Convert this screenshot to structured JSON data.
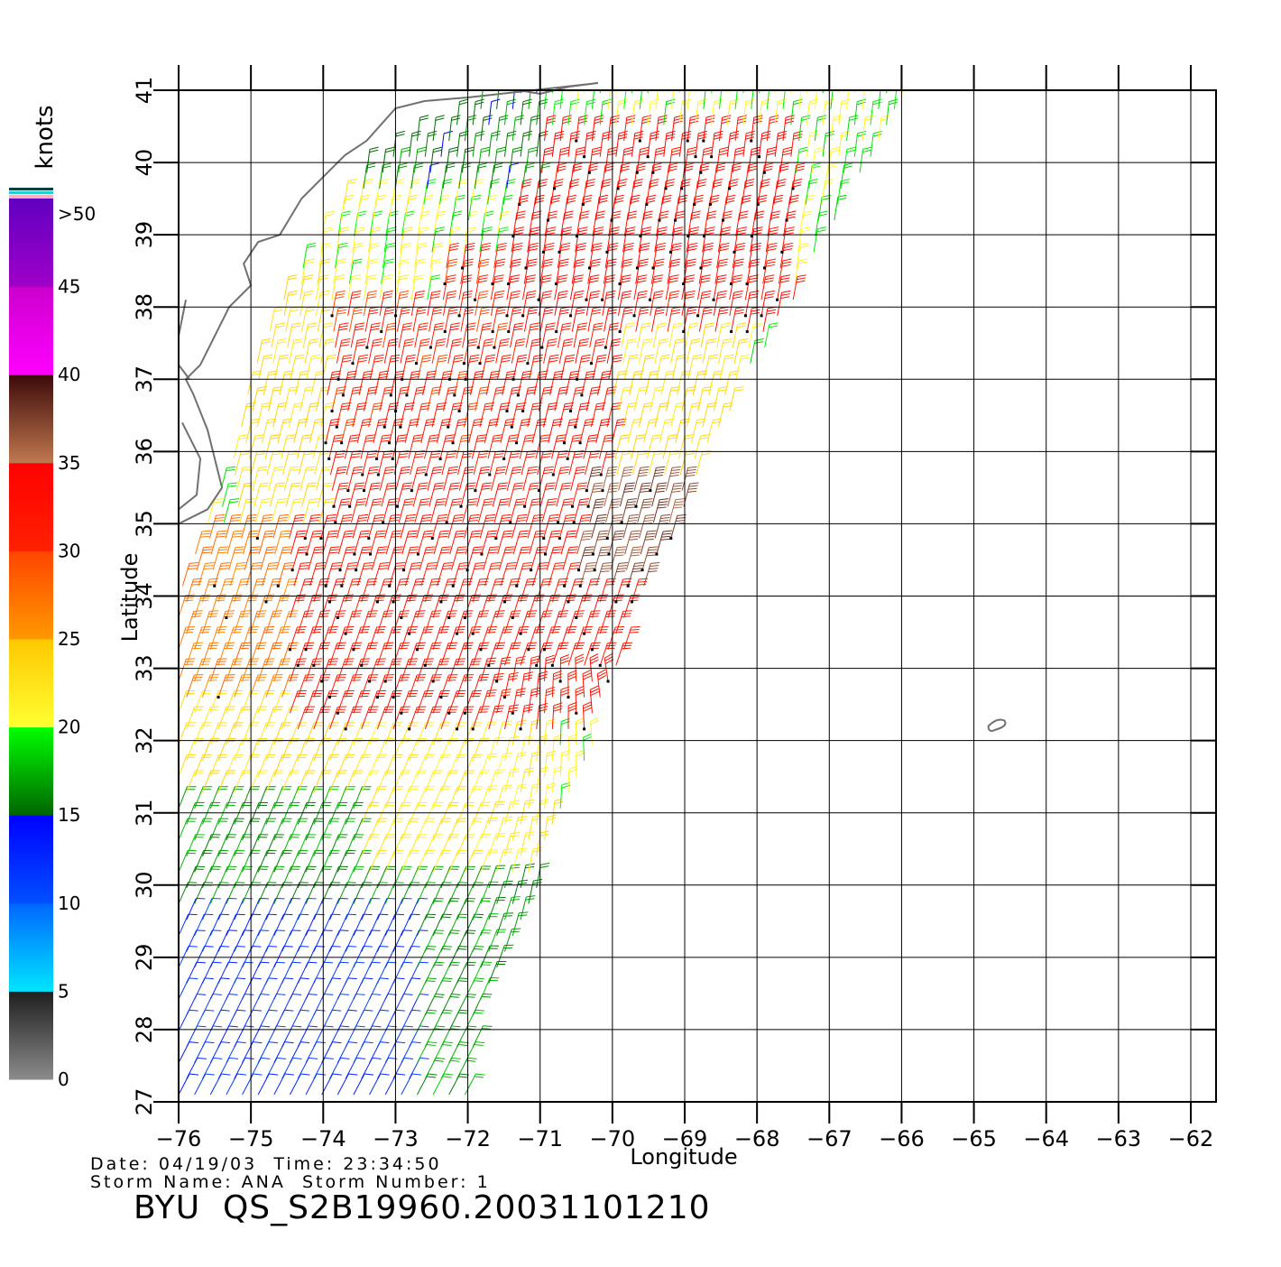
{
  "figure": {
    "date_label": "Date:",
    "date": "04/19/03",
    "time_label": "Time:",
    "time": "23:34:50",
    "storm_name_label": "Storm Name:",
    "storm_name": "ANA",
    "storm_number_label": "Storm Number:",
    "storm_number": "1",
    "file_id": "BYU  QS_S2B19960.20031101210"
  },
  "colorbar": {
    "unit": "knots",
    "bands": [
      {
        "from": 0,
        "to": 5,
        "colors": [
          "#8c8c8c",
          "#1e1e1e"
        ]
      },
      {
        "from": 5,
        "to": 10,
        "colors": [
          "#00e5ff",
          "#0066ff"
        ]
      },
      {
        "from": 10,
        "to": 15,
        "colors": [
          "#0050ff",
          "#0000ff"
        ]
      },
      {
        "from": 15,
        "to": 20,
        "colors": [
          "#006400",
          "#00ff00"
        ]
      },
      {
        "from": 20,
        "to": 25,
        "colors": [
          "#ffff33",
          "#ffc800"
        ]
      },
      {
        "from": 25,
        "to": 30,
        "colors": [
          "#ff9900",
          "#ff4400"
        ]
      },
      {
        "from": 30,
        "to": 35,
        "colors": [
          "#ff2200",
          "#ff0000"
        ]
      },
      {
        "from": 35,
        "to": 40,
        "colors": [
          "#c07850",
          "#3c0a0a"
        ]
      },
      {
        "from": 40,
        "to": 45,
        "colors": [
          "#ff00ff",
          "#cc00cc"
        ]
      },
      {
        "from": 45,
        "to": 50,
        "colors": [
          "#a000c8",
          "#6000c0"
        ]
      }
    ],
    "tick_labels": [
      "0",
      "5",
      "10",
      "15",
      "20",
      "25",
      "30",
      "35",
      "40",
      "45",
      ">50"
    ]
  },
  "chart_data": {
    "type": "scatter",
    "title": "",
    "xlabel": "Longitude",
    "ylabel": "Latitude",
    "xlim": [
      -76,
      -62
    ],
    "ylim": [
      27,
      41
    ],
    "x_ticks": [
      "-76",
      "-75",
      "-74",
      "-73",
      "-72",
      "-71",
      "-70",
      "-69",
      "-68",
      "-67",
      "-66",
      "-65",
      "-64",
      "-63",
      "-62"
    ],
    "y_ticks": [
      "27",
      "28",
      "29",
      "30",
      "31",
      "32",
      "33",
      "34",
      "35",
      "36",
      "37",
      "38",
      "39",
      "40",
      "41"
    ],
    "grid": true,
    "swath_edges": [
      {
        "lat": 27.0,
        "lon_min": -76.0,
        "lon_max": -72.0
      },
      {
        "lat": 28.0,
        "lon_min": -76.0,
        "lon_max": -71.8
      },
      {
        "lat": 29.0,
        "lon_min": -76.0,
        "lon_max": -71.4
      },
      {
        "lat": 30.0,
        "lon_min": -76.0,
        "lon_max": -70.95
      },
      {
        "lat": 31.0,
        "lon_min": -76.0,
        "lon_max": -70.7
      },
      {
        "lat": 32.0,
        "lon_min": -76.0,
        "lon_max": -70.2
      },
      {
        "lat": 33.0,
        "lon_min": -76.0,
        "lon_max": -69.85
      },
      {
        "lat": 34.0,
        "lon_min": -76.0,
        "lon_max": -69.55
      },
      {
        "lat": 35.0,
        "lon_min": -75.6,
        "lon_max": -69.0
      },
      {
        "lat": 36.0,
        "lon_min": -75.2,
        "lon_max": -68.6
      },
      {
        "lat": 37.0,
        "lon_min": -75.0,
        "lon_max": -68.1
      },
      {
        "lat": 38.0,
        "lon_min": -74.6,
        "lon_max": -67.5
      },
      {
        "lat": 39.0,
        "lon_min": -74.0,
        "lon_max": -67.0
      },
      {
        "lat": 40.0,
        "lon_min": -73.3,
        "lon_max": -66.4
      },
      {
        "lat": 41.0,
        "lon_min": -71.3,
        "lon_max": -65.9
      }
    ],
    "wind_speed_zones_knots": [
      {
        "lat_min": 27.0,
        "lat_max": 29.6,
        "lon_min": -76.0,
        "lon_max": -72.8,
        "speed": 12
      },
      {
        "lat_min": 27.0,
        "lat_max": 30.8,
        "lon_min": -72.8,
        "lon_max": -71.0,
        "speed": 17
      },
      {
        "lat_min": 29.6,
        "lat_max": 31.2,
        "lon_min": -76.0,
        "lon_max": -72.8,
        "speed": 17
      },
      {
        "lat_min": 30.0,
        "lat_max": 32.5,
        "lon_min": -73.5,
        "lon_max": -70.8,
        "speed": 22
      },
      {
        "lat_min": 31.2,
        "lat_max": 33.0,
        "lon_min": -76.0,
        "lon_max": -73.5,
        "speed": 23
      },
      {
        "lat_min": 32.5,
        "lat_max": 35.0,
        "lon_min": -76.0,
        "lon_max": -74.5,
        "speed": 27
      },
      {
        "lat_min": 32.0,
        "lat_max": 37.5,
        "lon_min": -74.5,
        "lon_max": -69.5,
        "speed": 32
      },
      {
        "lat_min": 35.0,
        "lat_max": 38.5,
        "lon_min": -75.3,
        "lon_max": -74.0,
        "speed": 23
      },
      {
        "lat_min": 35.5,
        "lat_max": 38.6,
        "lon_min": -74.0,
        "lon_max": -71.5,
        "speed": 31
      },
      {
        "lat_min": 37.5,
        "lat_max": 40.5,
        "lon_min": -71.5,
        "lon_max": -67.5,
        "speed": 33
      },
      {
        "lat_min": 38.0,
        "lat_max": 40.8,
        "lon_min": -74.0,
        "lon_max": -72.5,
        "speed": 21
      },
      {
        "lat_min": 39.5,
        "lat_max": 41.0,
        "lon_min": -73.5,
        "lon_max": -71.0,
        "speed": 16
      },
      {
        "lat_min": 35.0,
        "lat_max": 37.5,
        "lon_min": -70.0,
        "lon_max": -68.3,
        "speed": 23
      },
      {
        "lat_min": 34.0,
        "lat_max": 35.5,
        "lon_min": -70.5,
        "lon_max": -69.0,
        "speed": 37
      }
    ],
    "annotations": []
  }
}
